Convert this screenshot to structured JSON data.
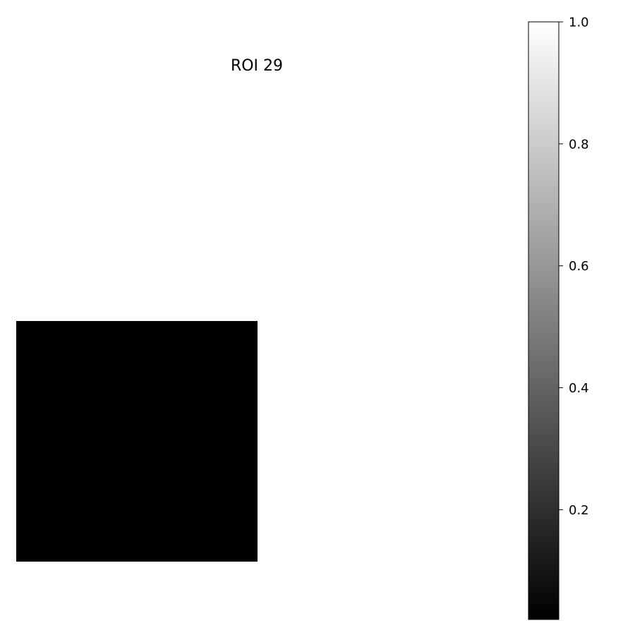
{
  "chart_data": {
    "type": "heatmap",
    "title": "ROI 29",
    "image_values": [
      [
        0.0
      ]
    ],
    "colormap": "gray",
    "colorbar": {
      "range": [
        0.02,
        1.0
      ],
      "ticks": [
        0.2,
        0.4,
        0.6,
        0.8,
        1.0
      ],
      "tick_labels": [
        "0.2",
        "0.4",
        "0.6",
        "0.8",
        "1.0"
      ],
      "low_color": "#000000",
      "high_color": "#ffffff"
    },
    "axes_visible": false
  }
}
